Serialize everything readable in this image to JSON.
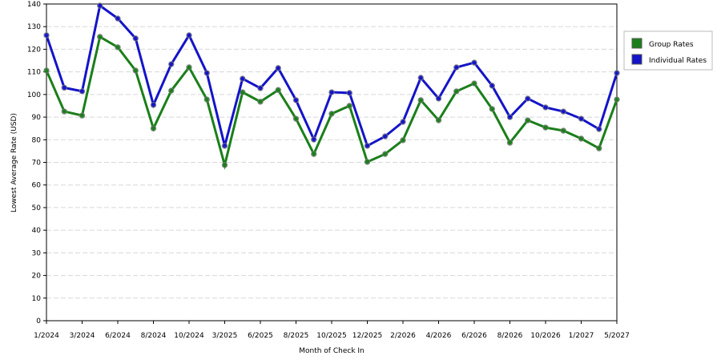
{
  "chart_data": {
    "type": "line",
    "x_label": "Month of Check In",
    "y_label": "Lowest Average Rate (USD)",
    "categories": [
      "1/2024",
      null,
      "3/2024",
      null,
      "6/2024",
      null,
      "8/2024",
      null,
      "10/2024",
      null,
      "3/2025",
      null,
      "6/2025",
      null,
      "8/2025",
      null,
      "10/2025",
      null,
      "12/2025",
      null,
      "2/2026",
      null,
      "4/2026",
      null,
      "6/2026",
      null,
      "8/2026",
      null,
      "10/2026",
      null,
      "1/2027",
      null,
      "5/2027"
    ],
    "series": [
      {
        "name": "Group Rates",
        "color": "#1a7f1a",
        "values": [
          110.6,
          92.5,
          90.7,
          125.5,
          120.9,
          110.6,
          85,
          101.7,
          112,
          97.8,
          68.8,
          101,
          96.8,
          102,
          89.3,
          73.7,
          91.5,
          95,
          70.2,
          73.7,
          79.8,
          97.5,
          88.6,
          101.4,
          104.9,
          93.6,
          78.7,
          88.6,
          85.4,
          84,
          80.5,
          76.2,
          97.8
        ]
      },
      {
        "name": "Individual Rates",
        "color": "#1414c8",
        "values": [
          126.2,
          103,
          101.4,
          139.3,
          133.6,
          124.8,
          95.4,
          113.4,
          126.2,
          109.5,
          77.3,
          107,
          102.8,
          111.7,
          97.5,
          80.1,
          101,
          100.7,
          77.3,
          81.5,
          87.9,
          107.4,
          98.2,
          112,
          114.1,
          103.9,
          90,
          98.2,
          94.3,
          92.5,
          89.3,
          84.7,
          109.5
        ]
      }
    ],
    "ylim": [
      0,
      140
    ],
    "yticks": [
      0,
      10,
      20,
      30,
      40,
      50,
      60,
      70,
      80,
      90,
      100,
      110,
      120,
      130,
      140
    ],
    "grid": true,
    "legend": "right"
  }
}
